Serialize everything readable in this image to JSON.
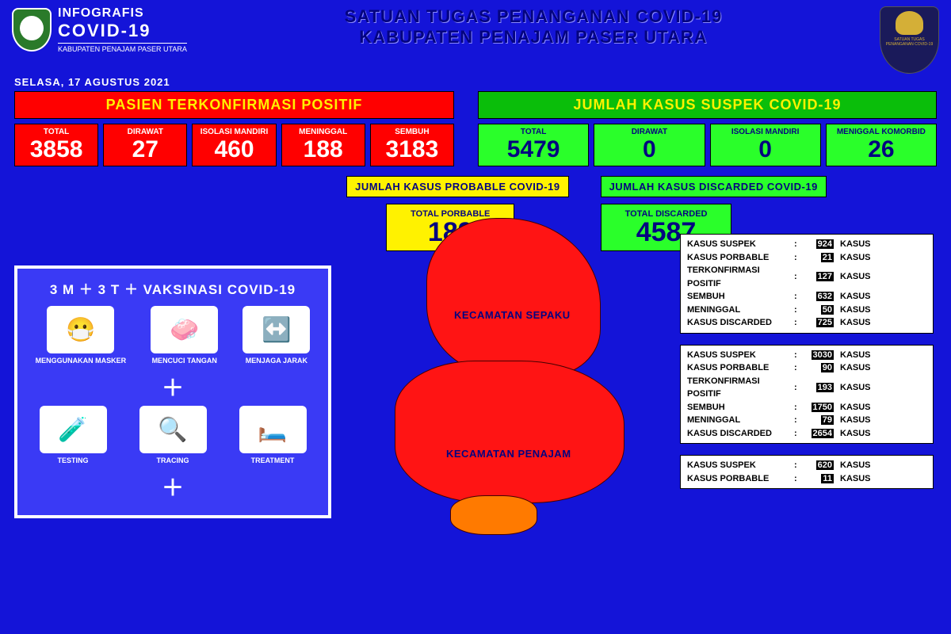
{
  "header": {
    "logo_t1": "INFOGRAFIS",
    "logo_t2": "COVID-19",
    "logo_t3": "KABUPATEN PENAJAM PASER UTARA",
    "title1": "SATUAN TUGAS PENANGANAN COVID-19",
    "title2": "KABUPATEN PENAJAM PASER UTARA",
    "right_caption": "SATUAN TUGAS PENANGANAN COVID-19"
  },
  "date": "SELASA, 17 AGUSTUS 2021",
  "positif": {
    "header": "PASIEN TERKONFIRMASI POSITIF",
    "boxes": [
      {
        "label": "TOTAL",
        "value": "3858"
      },
      {
        "label": "DIRAWAT",
        "value": "27"
      },
      {
        "label": "ISOLASI MANDIRI",
        "value": "460"
      },
      {
        "label": "MENINGGAL",
        "value": "188"
      },
      {
        "label": "SEMBUH",
        "value": "3183"
      }
    ]
  },
  "suspek": {
    "header": "JUMLAH KASUS SUSPEK COVID-19",
    "boxes": [
      {
        "label": "TOTAL",
        "value": "5479"
      },
      {
        "label": "DIRAWAT",
        "value": "0"
      },
      {
        "label": "ISOLASI MANDIRI",
        "value": "0"
      },
      {
        "label": "MENIGGAL KOMORBID",
        "value": "26"
      }
    ]
  },
  "probable": {
    "header": "JUMLAH KASUS PROBABLE COVID-19",
    "label": "TOTAL PORBABLE",
    "value": "189"
  },
  "discarded": {
    "header": "JUMLAH KASUS DISCARDED COVID-19",
    "label": "TOTAL DISCARDED",
    "value": "4587"
  },
  "vaksin": {
    "header": "3 M ＋ 3 T ＋ VAKSINASI COVID-19",
    "row1": [
      {
        "cap": "MENGGUNAKAN MASKER",
        "emoji": "😷"
      },
      {
        "cap": "MENCUCI TANGAN",
        "emoji": "🧼"
      },
      {
        "cap": "MENJAGA JARAK",
        "emoji": "↔️"
      }
    ],
    "row2": [
      {
        "cap": "TESTING",
        "emoji": "🧪"
      },
      {
        "cap": "TRACING",
        "emoji": "🔍"
      },
      {
        "cap": "TREATMENT",
        "emoji": "🛏️"
      }
    ]
  },
  "map": {
    "label1": "KECAMATAN SEPAKU",
    "label2": "KECAMATAN PENAJAM"
  },
  "stats_unit": "KASUS",
  "district_stats": [
    [
      {
        "k": "KASUS SUSPEK",
        "v": "924"
      },
      {
        "k": "KASUS PORBABLE",
        "v": "21"
      },
      {
        "k": "TERKONFIRMASI POSITIF",
        "v": "127"
      },
      {
        "k": "SEMBUH",
        "v": "632"
      },
      {
        "k": "MENINGGAL",
        "v": "50"
      },
      {
        "k": "KASUS DISCARDED",
        "v": "725"
      }
    ],
    [
      {
        "k": "KASUS SUSPEK",
        "v": "3030"
      },
      {
        "k": "KASUS PORBABLE",
        "v": "90"
      },
      {
        "k": "TERKONFIRMASI POSITIF",
        "v": "193"
      },
      {
        "k": "SEMBUH",
        "v": "1750"
      },
      {
        "k": "MENINGGAL",
        "v": "79"
      },
      {
        "k": "KASUS DISCARDED",
        "v": "2654"
      }
    ],
    [
      {
        "k": "KASUS SUSPEK",
        "v": "620"
      },
      {
        "k": "KASUS PORBABLE",
        "v": "11"
      }
    ]
  ],
  "colors": {
    "bg": "#1414d8",
    "red": "#ff0000",
    "green": "#2aff2a",
    "green_hdr": "#0abe0a",
    "yellow": "#fff200",
    "navy": "#040480",
    "white": "#ffffff",
    "orange": "#ff7a00"
  }
}
